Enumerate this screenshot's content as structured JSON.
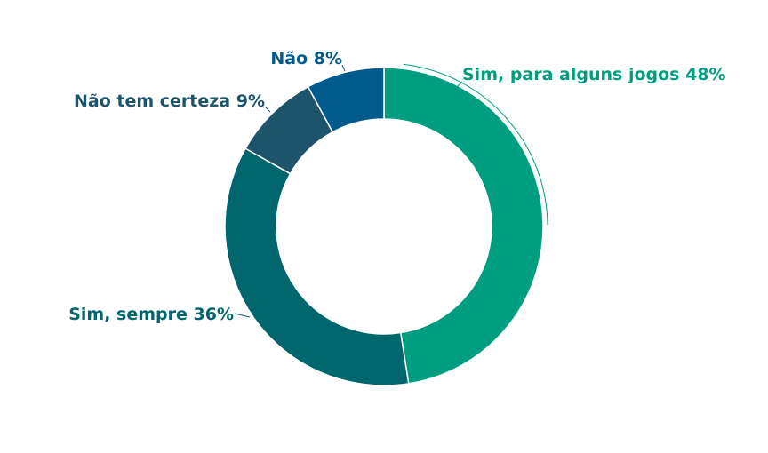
{
  "chart_data": {
    "type": "pie",
    "donut": true,
    "title": "",
    "series": [
      {
        "labels": [
          "Sim, para alguns jogos",
          "Sim, sempre",
          "Não tem certeza",
          "Não"
        ],
        "values": [
          48,
          36,
          9,
          8
        ],
        "display_labels": [
          "Sim, para alguns jogos 48%",
          "Sim, sempre 36%",
          "Não tem certeza 9%",
          "Não 8%"
        ],
        "colors": [
          "#009e80",
          "#00666e",
          "#1d546b",
          "#005a8c"
        ]
      }
    ],
    "legend": "none"
  }
}
